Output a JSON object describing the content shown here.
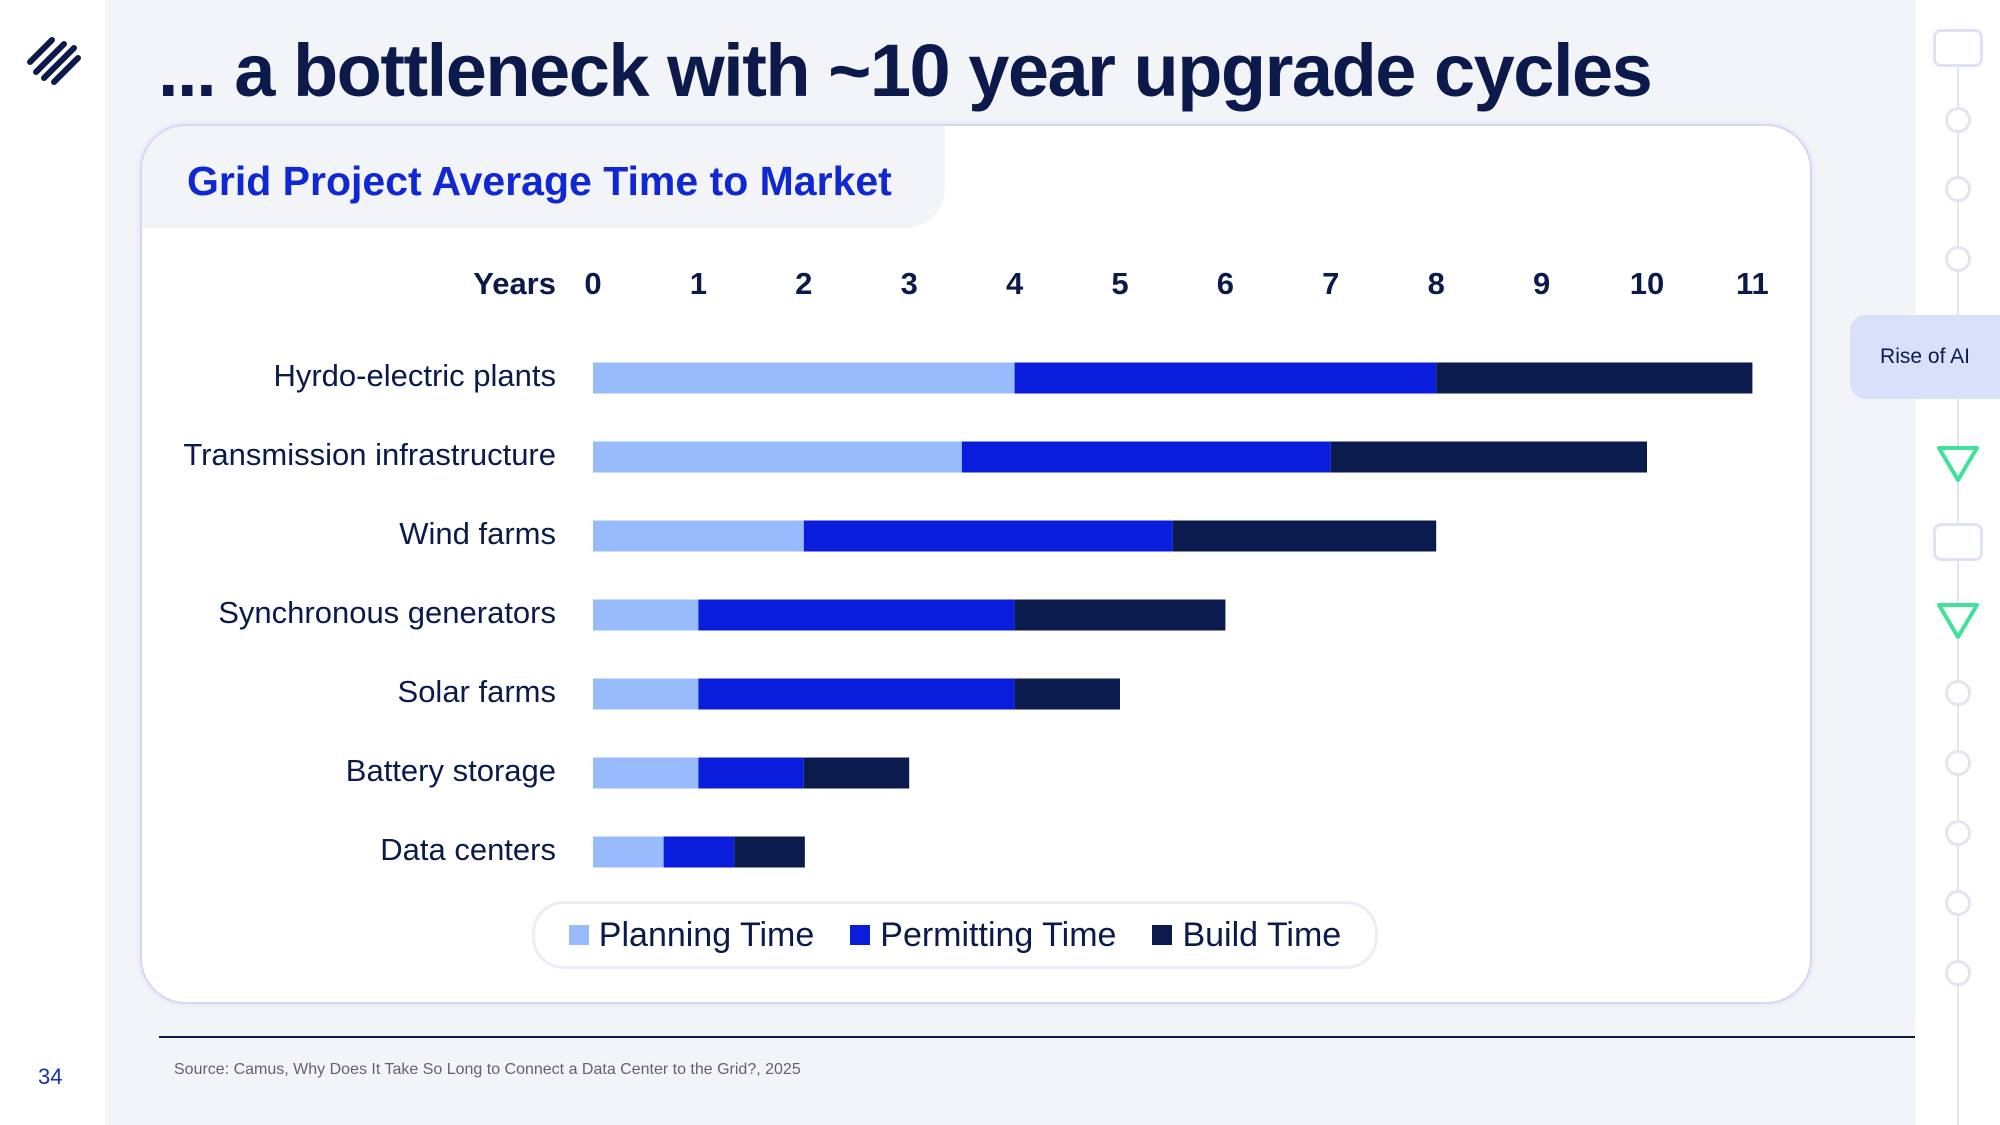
{
  "slide": {
    "title": "... a bottleneck with ~10 year upgrade cycles",
    "page_number": "34",
    "source": "Source: Camus, Why Does It Take So Long to Connect a Data Center to the Grid?, 2025"
  },
  "card": {
    "title": "Grid Project Average Time to Market"
  },
  "nav": {
    "active_label": "Rise of AI"
  },
  "colors": {
    "planning": "#97bbfb",
    "permitting": "#0a1ddc",
    "build": "#0b1b4e",
    "title": "#0b1a4a",
    "accent": "#1027d4",
    "rail_triangle": "#3ee29a"
  },
  "legend": {
    "items": [
      {
        "label": "Planning Time",
        "color": "#97bbfb"
      },
      {
        "label": "Permitting Time",
        "color": "#0a1ddc"
      },
      {
        "label": "Build Time",
        "color": "#0b1b4e"
      }
    ]
  },
  "chart_data": {
    "type": "bar",
    "orientation": "horizontal",
    "stacked": true,
    "title": "Grid Project Average Time to Market",
    "xlabel": "Years",
    "xlim": [
      0,
      11
    ],
    "xticks": [
      0,
      1,
      2,
      3,
      4,
      5,
      6,
      7,
      8,
      9,
      10,
      11
    ],
    "x_axis_position": "top",
    "grid": false,
    "legend_position": "bottom-center",
    "categories": [
      "Hyrdo-electric plants",
      "Transmission infrastructure",
      "Wind farms",
      "Synchronous generators",
      "Solar farms",
      "Battery storage",
      "Data centers"
    ],
    "series": [
      {
        "name": "Planning Time",
        "color": "#97bbfb",
        "values": [
          4,
          3.5,
          2,
          1,
          1,
          1,
          0.67
        ]
      },
      {
        "name": "Permitting Time",
        "color": "#0a1ddc",
        "values": [
          4,
          3.5,
          3.5,
          3,
          3,
          1,
          0.67
        ]
      },
      {
        "name": "Build Time",
        "color": "#0b1b4e",
        "values": [
          3,
          3,
          2.5,
          2,
          1,
          1,
          0.67
        ]
      }
    ]
  }
}
